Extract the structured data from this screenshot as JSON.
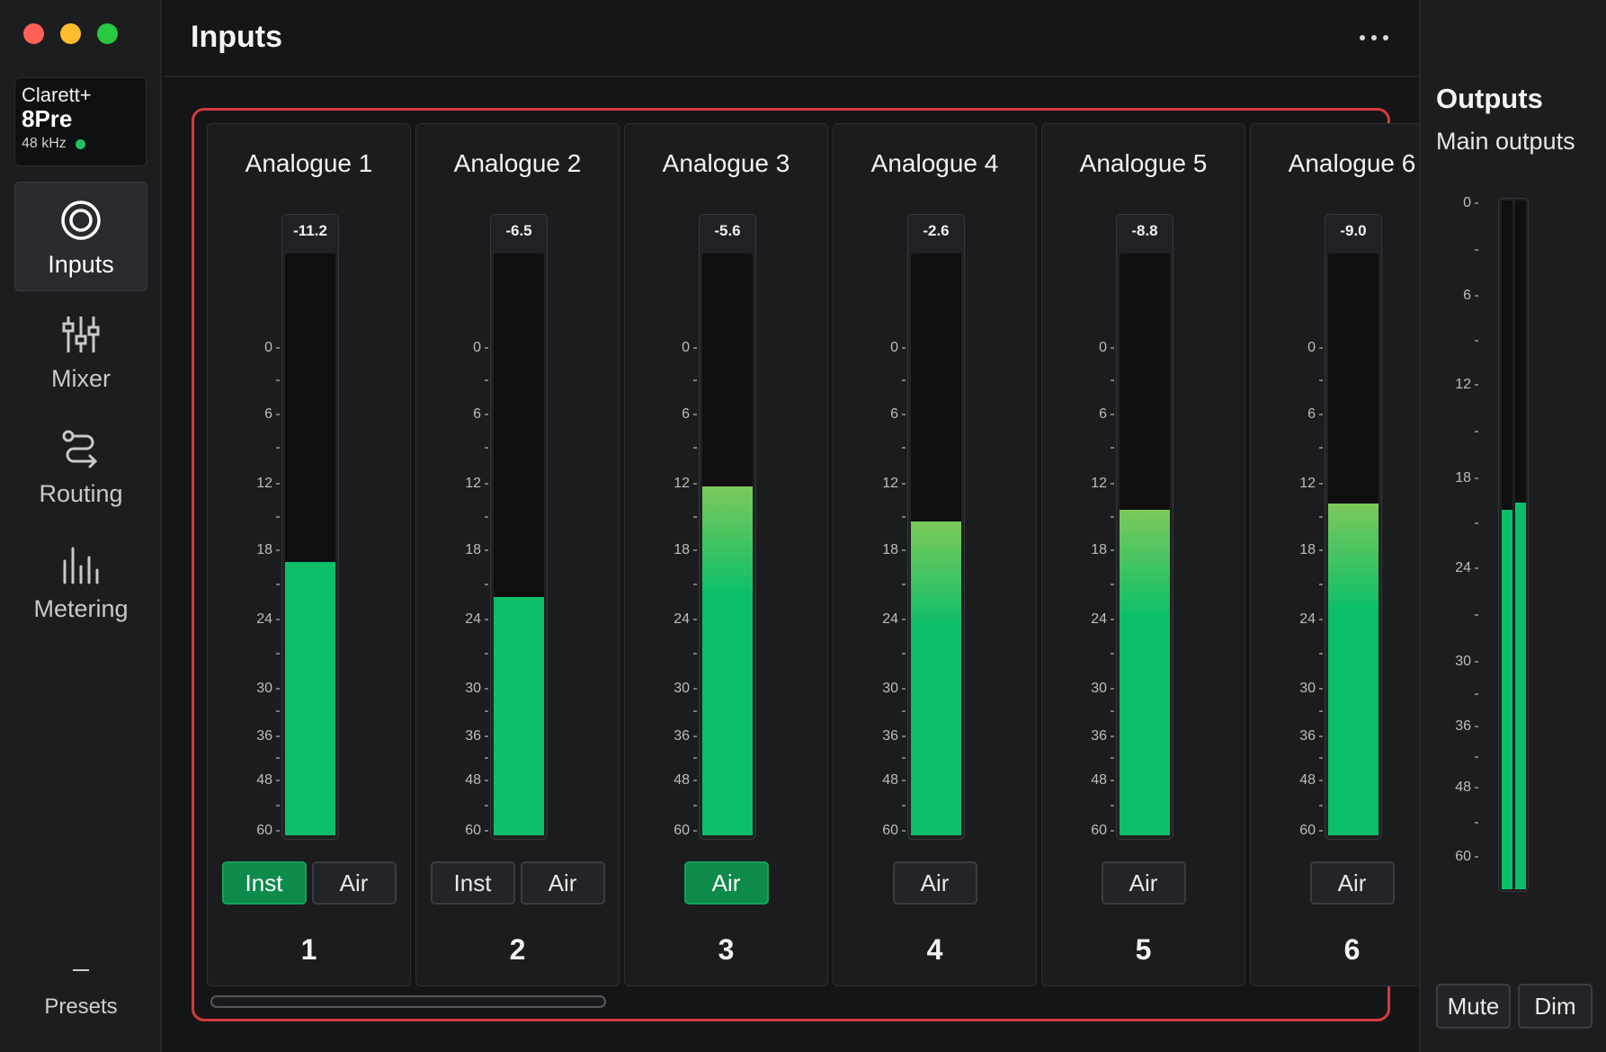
{
  "window": {
    "traffic_lights": [
      "close",
      "minimize",
      "zoom"
    ]
  },
  "device": {
    "name": "Clarett+",
    "model": "8Pre",
    "sample_rate": "48 kHz",
    "status_color": "#1fbf63"
  },
  "sidebar": {
    "items": [
      {
        "label": "Inputs",
        "icon": "inputs-icon",
        "active": true
      },
      {
        "label": "Mixer",
        "icon": "mixer-icon",
        "active": false
      },
      {
        "label": "Routing",
        "icon": "routing-icon",
        "active": false
      },
      {
        "label": "Metering",
        "icon": "metering-icon",
        "active": false
      }
    ],
    "presets_label": "Presets"
  },
  "header": {
    "title": "Inputs",
    "more_icon": "more-horizontal-icon"
  },
  "meter_scale": [
    "0",
    "6",
    "12",
    "18",
    "24",
    "30",
    "36",
    "48",
    "60"
  ],
  "channels": [
    {
      "name": "Analogue 1",
      "peak": "-11.2",
      "level": 0.47,
      "buttons": [
        {
          "label": "Inst",
          "on": true
        },
        {
          "label": "Air",
          "on": false
        }
      ],
      "number": "1"
    },
    {
      "name": "Analogue 2",
      "peak": "-6.5",
      "level": 0.41,
      "buttons": [
        {
          "label": "Inst",
          "on": false
        },
        {
          "label": "Air",
          "on": false
        }
      ],
      "number": "2"
    },
    {
      "name": "Analogue 3",
      "peak": "-5.6",
      "level": 0.6,
      "buttons": [
        {
          "label": "Air",
          "on": true
        }
      ],
      "number": "3"
    },
    {
      "name": "Analogue 4",
      "peak": "-2.6",
      "level": 0.54,
      "buttons": [
        {
          "label": "Air",
          "on": false
        }
      ],
      "number": "4"
    },
    {
      "name": "Analogue 5",
      "peak": "-8.8",
      "level": 0.56,
      "buttons": [
        {
          "label": "Air",
          "on": false
        }
      ],
      "number": "5"
    },
    {
      "name": "Analogue 6",
      "peak": "-9.0",
      "level": 0.57,
      "buttons": [
        {
          "label": "Air",
          "on": false
        }
      ],
      "number": "6"
    }
  ],
  "outputs": {
    "title": "Outputs",
    "subtitle": "Main outputs",
    "scale": [
      "0",
      "6",
      "12",
      "18",
      "24",
      "30",
      "36",
      "48",
      "60"
    ],
    "levels": [
      0.55,
      0.56
    ],
    "mute_label": "Mute",
    "dim_label": "Dim"
  },
  "colors": {
    "meter_green": "#0bbf6a",
    "active_button": "#0e8a4a",
    "focus_border": "#d43a3a"
  }
}
